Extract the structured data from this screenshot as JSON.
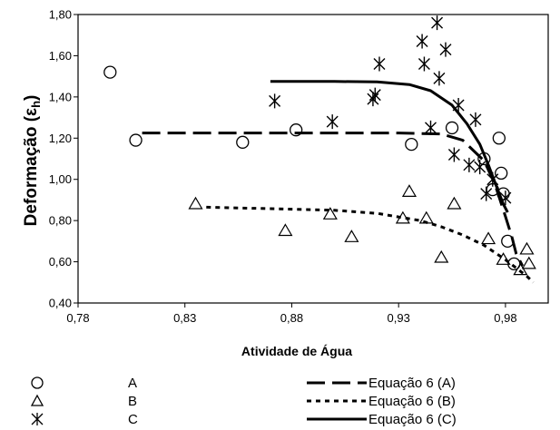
{
  "chart_data": {
    "type": "scatter",
    "title": "",
    "xlabel": "Atividade de Água",
    "ylabel_main": "Deformação (",
    "ylabel_symbol": "ε",
    "ylabel_sub": "h",
    "ylabel_close": ")",
    "xlim": [
      0.78,
      1.0
    ],
    "ylim": [
      0.4,
      1.8
    ],
    "xticks": [
      "0,78",
      "0,83",
      "0,88",
      "0,93",
      "0,98"
    ],
    "xtick_values": [
      0.78,
      0.83,
      0.88,
      0.93,
      0.98
    ],
    "yticks": [
      "0,40",
      "0,60",
      "0,80",
      "1,00",
      "1,20",
      "1,40",
      "1,60",
      "1,80"
    ],
    "ytick_values": [
      0.4,
      0.6,
      0.8,
      1.0,
      1.2,
      1.4,
      1.6,
      1.8
    ],
    "grid": false,
    "legend_position": "bottom",
    "series": [
      {
        "name": "A",
        "marker": "circle",
        "points": [
          [
            0.795,
            1.52
          ],
          [
            0.807,
            1.19
          ],
          [
            0.857,
            1.18
          ],
          [
            0.882,
            1.24
          ],
          [
            0.936,
            1.17
          ],
          [
            0.955,
            1.25
          ],
          [
            0.97,
            1.1
          ],
          [
            0.974,
            0.95
          ],
          [
            0.977,
            1.2
          ],
          [
            0.978,
            1.03
          ],
          [
            0.979,
            0.93
          ],
          [
            0.981,
            0.7
          ],
          [
            0.984,
            0.59
          ]
        ]
      },
      {
        "name": "B",
        "marker": "triangle",
        "points": [
          [
            0.835,
            0.88
          ],
          [
            0.877,
            0.75
          ],
          [
            0.898,
            0.83
          ],
          [
            0.908,
            0.72
          ],
          [
            0.932,
            0.81
          ],
          [
            0.935,
            0.94
          ],
          [
            0.943,
            0.81
          ],
          [
            0.95,
            0.62
          ],
          [
            0.956,
            0.88
          ],
          [
            0.972,
            0.71
          ],
          [
            0.979,
            0.61
          ],
          [
            0.987,
            0.56
          ],
          [
            0.99,
            0.66
          ],
          [
            0.991,
            0.59
          ]
        ]
      },
      {
        "name": "C",
        "marker": "asterisk",
        "points": [
          [
            0.872,
            1.38
          ],
          [
            0.899,
            1.28
          ],
          [
            0.918,
            1.39
          ],
          [
            0.919,
            1.41
          ],
          [
            0.921,
            1.56
          ],
          [
            0.941,
            1.67
          ],
          [
            0.942,
            1.56
          ],
          [
            0.945,
            1.25
          ],
          [
            0.948,
            1.76
          ],
          [
            0.949,
            1.49
          ],
          [
            0.952,
            1.63
          ],
          [
            0.956,
            1.12
          ],
          [
            0.958,
            1.36
          ],
          [
            0.963,
            1.07
          ],
          [
            0.966,
            1.29
          ],
          [
            0.968,
            1.06
          ],
          [
            0.971,
            0.93
          ],
          [
            0.974,
            1.0
          ],
          [
            0.98,
            0.91
          ]
        ]
      }
    ],
    "curves": [
      {
        "name": "Equação 6 (A)",
        "style": "long-dash",
        "points": [
          [
            0.81,
            1.225
          ],
          [
            0.85,
            1.225
          ],
          [
            0.9,
            1.225
          ],
          [
            0.93,
            1.225
          ],
          [
            0.95,
            1.22
          ],
          [
            0.96,
            1.19
          ],
          [
            0.97,
            1.09
          ],
          [
            0.975,
            0.98
          ],
          [
            0.98,
            0.82
          ],
          [
            0.983,
            0.72
          ],
          [
            0.985,
            0.64
          ],
          [
            0.988,
            0.58
          ]
        ]
      },
      {
        "name": "Equação 6 (B)",
        "style": "short-dash",
        "points": [
          [
            0.84,
            0.865
          ],
          [
            0.86,
            0.86
          ],
          [
            0.88,
            0.855
          ],
          [
            0.9,
            0.85
          ],
          [
            0.92,
            0.835
          ],
          [
            0.94,
            0.8
          ],
          [
            0.95,
            0.77
          ],
          [
            0.96,
            0.73
          ],
          [
            0.97,
            0.68
          ],
          [
            0.98,
            0.61
          ],
          [
            0.99,
            0.53
          ],
          [
            0.993,
            0.5
          ]
        ]
      },
      {
        "name": "Equação 6 (C)",
        "style": "solid",
        "points": [
          [
            0.87,
            1.475
          ],
          [
            0.9,
            1.475
          ],
          [
            0.92,
            1.473
          ],
          [
            0.935,
            1.46
          ],
          [
            0.945,
            1.43
          ],
          [
            0.955,
            1.36
          ],
          [
            0.962,
            1.27
          ],
          [
            0.968,
            1.17
          ],
          [
            0.972,
            1.07
          ],
          [
            0.976,
            0.96
          ],
          [
            0.979,
            0.88
          ],
          [
            0.981,
            0.84
          ]
        ]
      }
    ]
  }
}
